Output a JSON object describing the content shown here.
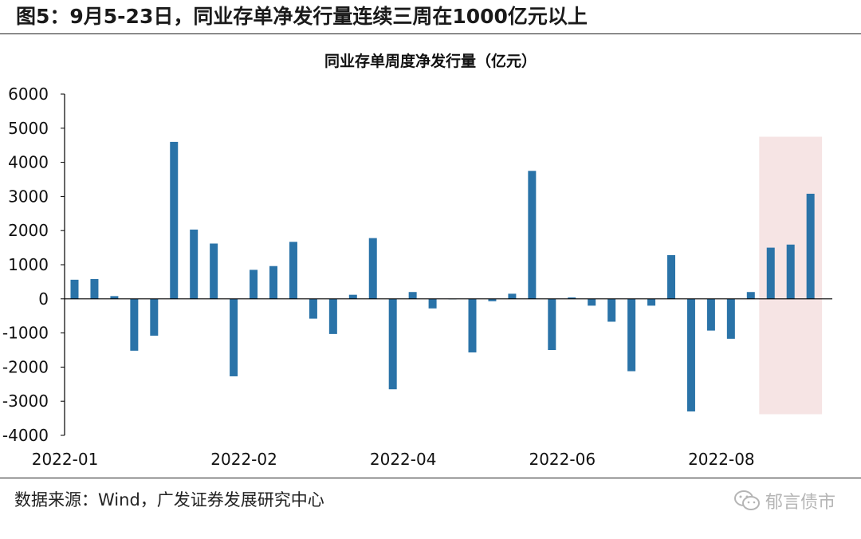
{
  "figure_title": "图5：9月5-23日，同业存单净发行量连续三周在1000亿元以上",
  "source_text": "数据来源：Wind，广发证券发展研究中心",
  "watermark": {
    "text": "郁言债市",
    "icon": "wechat-icon"
  },
  "colors": {
    "bar": "#2A73A8",
    "highlight": "#F6E4E4",
    "axis": "#000000"
  },
  "chart_data": {
    "type": "bar",
    "title": "同业存单周度净发行量（亿元）",
    "ylim": [
      -4000,
      6000
    ],
    "yticks": [
      "6000",
      "5000",
      "4000",
      "3000",
      "2000",
      "1000",
      "0",
      "-1000",
      "-2000",
      "-3000",
      "-4000"
    ],
    "xtick_labels": [
      {
        "label": "2022-01",
        "index": 0
      },
      {
        "label": "2022-02",
        "index": 9
      },
      {
        "label": "2022-04",
        "index": 17
      },
      {
        "label": "2022-06",
        "index": 25
      },
      {
        "label": "2022-08",
        "index": 33
      }
    ],
    "highlight_range": {
      "start_index": 35,
      "end_index": 37,
      "ylim": [
        -3380,
        4750
      ]
    },
    "values": [
      560,
      580,
      80,
      -1520,
      -1080,
      4600,
      2030,
      1620,
      -2270,
      850,
      960,
      1670,
      -580,
      -1030,
      120,
      1780,
      -2650,
      200,
      -280,
      0,
      -1570,
      -70,
      150,
      3750,
      -1500,
      40,
      -200,
      -670,
      -2120,
      -200,
      1280,
      -3300,
      -930,
      -1170,
      200,
      1500,
      1590,
      3080
    ]
  }
}
